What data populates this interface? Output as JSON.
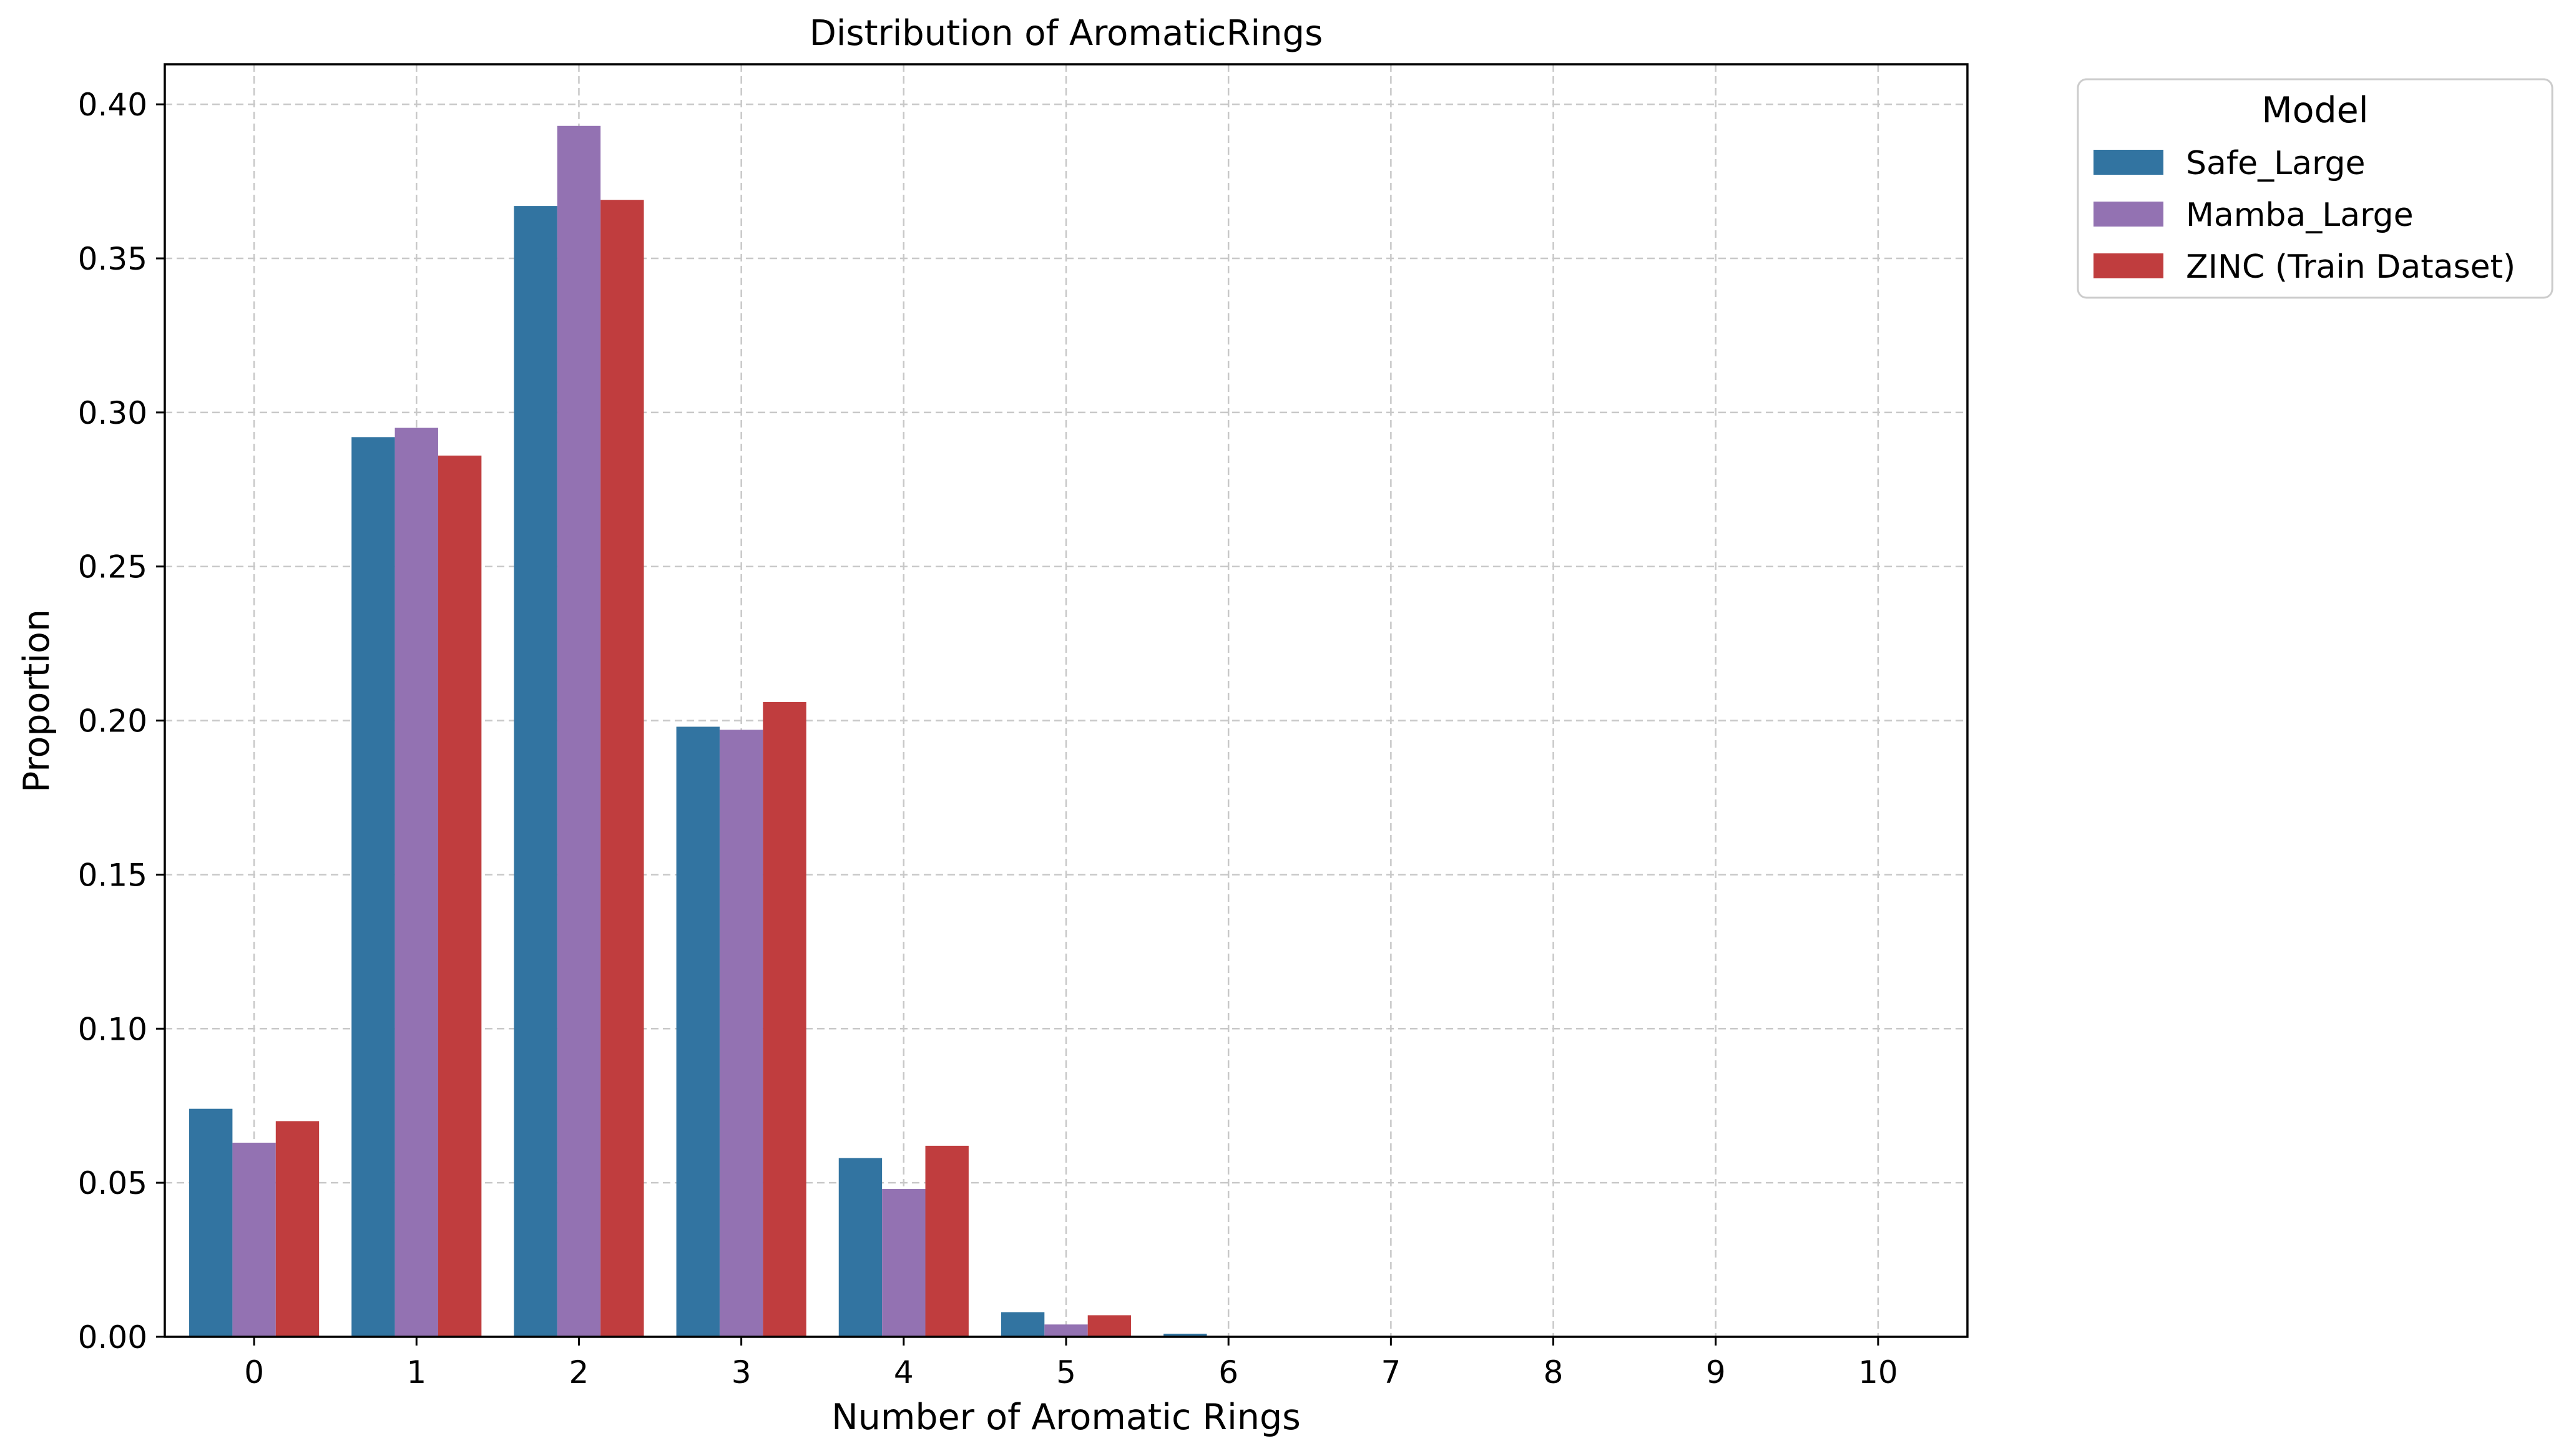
{
  "chart_data": {
    "type": "bar",
    "title": "Distribution of AromaticRings",
    "xlabel": "Number of Aromatic Rings",
    "ylabel": "Proportion",
    "categories": [
      "0",
      "1",
      "2",
      "3",
      "4",
      "5",
      "6",
      "7",
      "8",
      "9",
      "10"
    ],
    "ylim": [
      0,
      0.413
    ],
    "yticks": [
      "0.00",
      "0.05",
      "0.10",
      "0.15",
      "0.20",
      "0.25",
      "0.30",
      "0.35",
      "0.40"
    ],
    "grid": true,
    "legend": {
      "title": "Model",
      "placement": "outside-top-right"
    },
    "series": [
      {
        "name": "Safe_Large",
        "color": "#3274a1",
        "values": [
          0.074,
          0.292,
          0.367,
          0.198,
          0.058,
          0.008,
          0.001,
          0,
          0,
          0,
          0
        ]
      },
      {
        "name": "Mamba_Large",
        "color": "#9372b2",
        "values": [
          0.063,
          0.295,
          0.393,
          0.197,
          0.048,
          0.004,
          0,
          0,
          0,
          0,
          0
        ]
      },
      {
        "name": "ZINC (Train Dataset)",
        "color": "#c03d3e",
        "values": [
          0.07,
          0.286,
          0.369,
          0.206,
          0.062,
          0.007,
          0,
          0,
          0,
          0,
          0
        ]
      }
    ]
  }
}
